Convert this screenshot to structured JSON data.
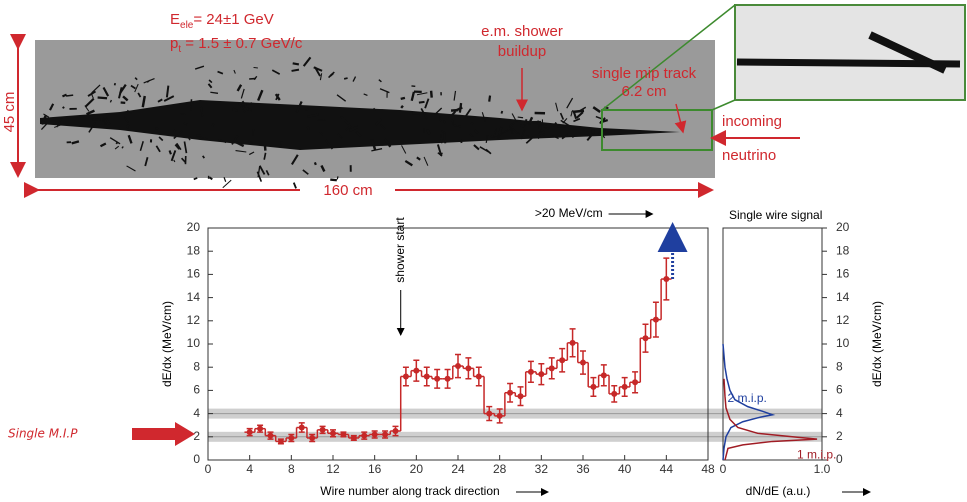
{
  "event_display": {
    "energy": {
      "symbol": "E",
      "subscript": "ele",
      "text": "= 24±1 GeV"
    },
    "momentum": {
      "symbol": "p",
      "subscript": "t",
      "text": " = 1.5 ± 0.7 GeV/c"
    },
    "labels": [
      "e.m. shower",
      "buildup",
      "single mip track",
      "6.2 cm",
      "incoming",
      "neutrino"
    ],
    "height_label": "45 cm",
    "length_label": "160 cm"
  },
  "side_label": "Single M.I.P",
  "chart_data": [
    {
      "type": "step",
      "x_label": "Wire number along track direction",
      "y_label": "dE/dx (MeV/cm)",
      "xlim": [
        0,
        48
      ],
      "xticks": [
        0,
        4,
        8,
        12,
        16,
        20,
        24,
        28,
        32,
        36,
        40,
        44,
        48
      ],
      "ylim": [
        0,
        20
      ],
      "yticks": [
        0,
        2,
        4,
        6,
        8,
        10,
        12,
        14,
        16,
        18,
        20
      ],
      "bands": [
        2,
        4
      ],
      "color": "#c62828",
      "x": [
        4,
        5,
        6,
        7,
        8,
        9,
        10,
        11,
        12,
        13,
        14,
        15,
        16,
        17,
        18,
        19,
        20,
        21,
        22,
        23,
        24,
        25,
        26,
        27,
        28,
        29,
        30,
        31,
        32,
        33,
        34,
        35,
        36,
        37,
        38,
        39,
        40,
        41,
        42,
        43,
        44
      ],
      "values": [
        2.4,
        2.7,
        2.1,
        1.6,
        1.9,
        2.8,
        1.9,
        2.6,
        2.3,
        2.2,
        1.9,
        2.1,
        2.2,
        2.2,
        2.5,
        7.2,
        7.7,
        7.2,
        7.0,
        7.0,
        8.1,
        7.9,
        7.2,
        4.0,
        3.8,
        5.8,
        5.5,
        7.6,
        7.4,
        7.9,
        8.6,
        10.1,
        8.4,
        6.3,
        7.3,
        5.7,
        6.3,
        6.7,
        10.5,
        12.1,
        15.6
      ],
      "errors": [
        0.3,
        0.3,
        0.3,
        0.2,
        0.3,
        0.4,
        0.3,
        0.3,
        0.3,
        0.2,
        0.2,
        0.3,
        0.3,
        0.3,
        0.4,
        0.8,
        0.9,
        0.8,
        0.8,
        0.8,
        1.0,
        0.9,
        0.8,
        0.6,
        0.6,
        0.8,
        0.8,
        0.9,
        0.9,
        0.9,
        1.0,
        1.2,
        1.0,
        0.8,
        0.9,
        0.7,
        0.8,
        0.9,
        1.2,
        1.5,
        1.8
      ],
      "annotations": [
        {
          "text": "shower start",
          "x": 18.5
        },
        {
          "text": ">20 MeV/cm",
          "x": 44.6,
          "y": 20
        }
      ]
    },
    {
      "type": "line",
      "title": "Single wire signal",
      "x_label": "dN/dE (a.u.)",
      "y_label": "dE/dx (MeV/cm)",
      "xlim": [
        0,
        1
      ],
      "xticks": [
        0,
        {
          "value": 1,
          "label": "1.0"
        }
      ],
      "ylim": [
        0,
        20
      ],
      "yticks": [
        0,
        2,
        4,
        6,
        8,
        10,
        12,
        14,
        16,
        18,
        20
      ],
      "series": [
        {
          "name": "2 m.i.p.",
          "color": "#1f3f9f",
          "x": [
            0.0,
            0.01,
            0.03,
            0.08,
            0.2,
            0.38,
            0.5,
            0.4,
            0.25,
            0.12,
            0.07,
            0.04,
            0.02,
            0.01,
            0.0
          ],
          "y": [
            0,
            1,
            2,
            2.8,
            3.3,
            3.7,
            3.9,
            4.2,
            4.6,
            5.2,
            6,
            7,
            8,
            9,
            10
          ]
        },
        {
          "name": "1 m.i.p.",
          "color": "#a01c24",
          "x": [
            0.02,
            0.05,
            0.2,
            0.5,
            0.95,
            0.7,
            0.35,
            0.15,
            0.07,
            0.03,
            0.02,
            0.01
          ],
          "y": [
            0,
            1,
            1.3,
            1.6,
            1.8,
            2.0,
            2.3,
            2.8,
            3.5,
            4.5,
            5.5,
            7
          ]
        }
      ]
    }
  ]
}
